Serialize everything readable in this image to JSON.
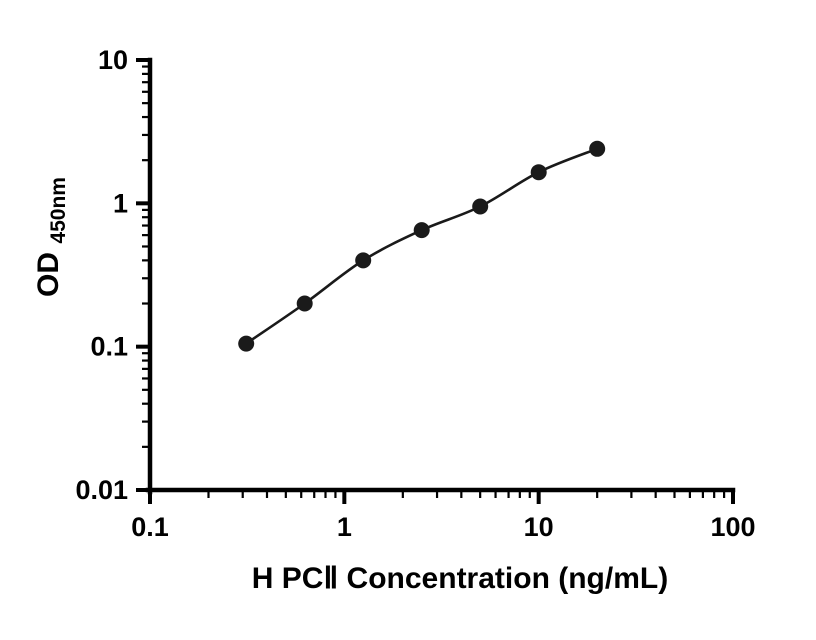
{
  "chart_data": {
    "type": "scatter",
    "title": "",
    "xlabel": "H PCⅡ Concentration (ng/mL)",
    "ylabel": "OD450nm",
    "ylabel_main": "OD",
    "ylabel_sub": "450nm",
    "xscale": "log",
    "yscale": "log",
    "xlim": [
      0.1,
      100
    ],
    "ylim": [
      0.01,
      10
    ],
    "x": [
      0.3125,
      0.625,
      1.25,
      2.5,
      5,
      10,
      20
    ],
    "y": [
      0.105,
      0.2,
      0.4,
      0.65,
      0.95,
      1.65,
      2.4
    ],
    "x_ticks": [
      0.1,
      1,
      10,
      100
    ],
    "x_tick_labels": [
      "0.1",
      "1",
      "10",
      "100"
    ],
    "y_ticks": [
      0.01,
      0.1,
      1,
      10
    ],
    "y_tick_labels": [
      "0.01",
      "0.1",
      "1",
      "10"
    ],
    "grid": false,
    "legend": null,
    "axis_color": "#000000",
    "marker_color": "#1a1a1a",
    "line_color": "#1a1a1a",
    "marker_radius": 8,
    "curve": "smooth fitted curve through points"
  }
}
